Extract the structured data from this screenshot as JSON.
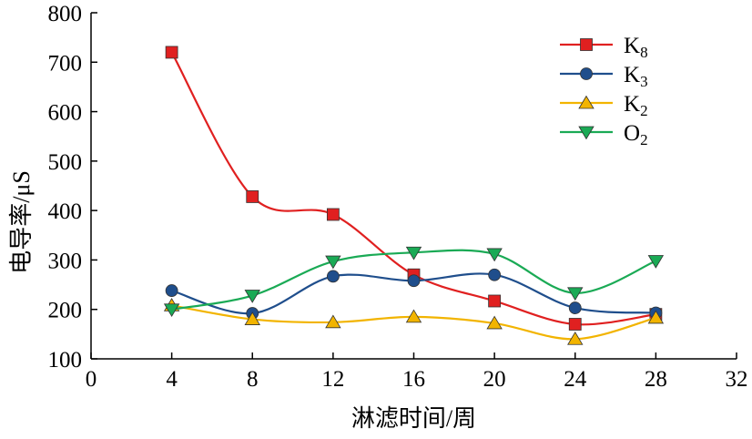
{
  "chart_data": {
    "type": "line",
    "title": "",
    "xlabel": "淋滤时间/周",
    "ylabel": "电导率/μS",
    "xlim": [
      0,
      32
    ],
    "ylim": [
      100,
      800
    ],
    "xticks": [
      0,
      4,
      8,
      12,
      16,
      20,
      24,
      28,
      32
    ],
    "yticks": [
      100,
      200,
      300,
      400,
      500,
      600,
      700,
      800
    ],
    "grid": false,
    "legend_position": "top-right",
    "x": [
      4,
      8,
      12,
      16,
      20,
      24,
      28
    ],
    "series": [
      {
        "name": "K8",
        "name_main": "K",
        "name_sub": "8",
        "marker": "square",
        "color": "#e02020",
        "values": [
          720,
          428,
          392,
          270,
          217,
          170,
          190
        ]
      },
      {
        "name": "K3",
        "name_main": "K",
        "name_sub": "3",
        "marker": "circle",
        "color": "#1f4e8c",
        "values": [
          238,
          192,
          267,
          258,
          270,
          203,
          193
        ]
      },
      {
        "name": "K2",
        "name_main": "K",
        "name_sub": "2",
        "marker": "triangle-up",
        "color": "#f2b400",
        "values": [
          208,
          180,
          174,
          185,
          172,
          140,
          183
        ]
      },
      {
        "name": "O2",
        "name_main": "O",
        "name_sub": "2",
        "marker": "triangle-down",
        "color": "#1aaa55",
        "values": [
          200,
          228,
          297,
          315,
          312,
          233,
          298
        ]
      }
    ]
  }
}
